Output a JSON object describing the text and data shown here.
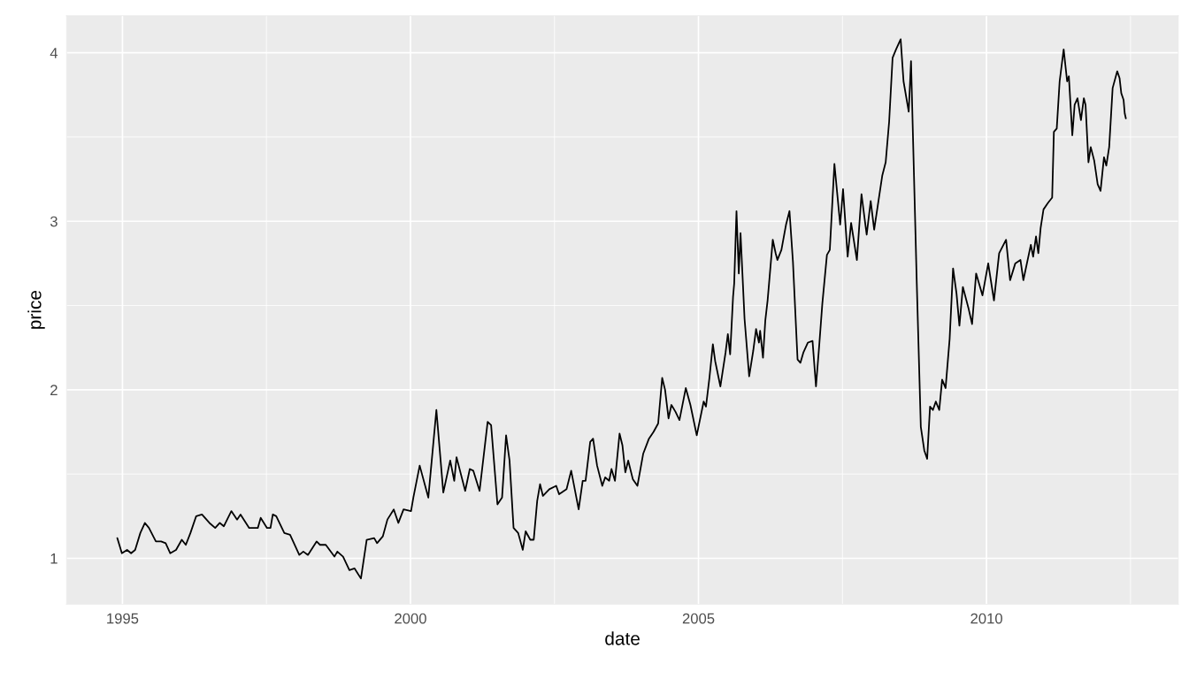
{
  "chart_data": {
    "type": "line",
    "xlabel": "date",
    "ylabel": "price",
    "xlim": [
      1994.03,
      2013.33
    ],
    "xticks": [
      1995,
      2000,
      2005,
      2010
    ],
    "ylim": [
      0.727,
      4.22
    ],
    "yticks": [
      1,
      2,
      3,
      4
    ],
    "grid": true,
    "line_style": "solid",
    "series": [
      {
        "color": "#000000",
        "x": [
          1994.91,
          1994.99,
          1995.08,
          1995.15,
          1995.22,
          1995.31,
          1995.39,
          1995.46,
          1995.58,
          1995.67,
          1995.75,
          1995.83,
          1995.93,
          1996.03,
          1996.1,
          1996.18,
          1996.28,
          1996.38,
          1996.51,
          1996.61,
          1996.69,
          1996.76,
          1996.89,
          1996.99,
          1997.05,
          1997.2,
          1997.35,
          1997.4,
          1997.51,
          1997.57,
          1997.61,
          1997.67,
          1997.81,
          1997.91,
          1998.07,
          1998.14,
          1998.22,
          1998.37,
          1998.43,
          1998.53,
          1998.68,
          1998.73,
          1998.83,
          1998.94,
          1999.03,
          1999.14,
          1999.24,
          1999.37,
          1999.42,
          1999.52,
          1999.6,
          1999.71,
          1999.79,
          1999.88,
          2000.01,
          2000.05,
          2000.16,
          2000.31,
          2000.45,
          2000.57,
          2000.69,
          2000.76,
          2000.8,
          2000.95,
          2001.03,
          2001.09,
          2001.2,
          2001.34,
          2001.4,
          2001.51,
          2001.59,
          2001.66,
          2001.72,
          2001.79,
          2001.87,
          2001.95,
          2002.0,
          2002.08,
          2002.14,
          2002.2,
          2002.25,
          2002.3,
          2002.41,
          2002.53,
          2002.58,
          2002.71,
          2002.79,
          2002.92,
          2002.99,
          2003.04,
          2003.12,
          2003.17,
          2003.24,
          2003.33,
          2003.38,
          2003.45,
          2003.49,
          2003.55,
          2003.63,
          2003.68,
          2003.73,
          2003.78,
          2003.86,
          2003.94,
          2004.04,
          2004.14,
          2004.22,
          2004.3,
          2004.37,
          2004.42,
          2004.48,
          2004.53,
          2004.6,
          2004.67,
          2004.78,
          2004.86,
          2004.97,
          2005.09,
          2005.13,
          2005.19,
          2005.25,
          2005.29,
          2005.38,
          2005.47,
          2005.51,
          2005.55,
          2005.6,
          2005.62,
          2005.66,
          2005.7,
          2005.73,
          2005.8,
          2005.88,
          2005.95,
          2006.0,
          2006.05,
          2006.07,
          2006.12,
          2006.16,
          2006.2,
          2006.29,
          2006.34,
          2006.37,
          2006.44,
          2006.52,
          2006.58,
          2006.64,
          2006.72,
          2006.77,
          2006.82,
          2006.9,
          2006.98,
          2007.04,
          2007.1,
          2007.15,
          2007.23,
          2007.28,
          2007.36,
          2007.46,
          2007.51,
          2007.59,
          2007.65,
          2007.75,
          2007.83,
          2007.92,
          2007.99,
          2008.05,
          2008.12,
          2008.19,
          2008.25,
          2008.31,
          2008.37,
          2008.43,
          2008.51,
          2008.56,
          2008.65,
          2008.69,
          2008.79,
          2008.86,
          2008.92,
          2008.97,
          2009.02,
          2009.07,
          2009.12,
          2009.18,
          2009.23,
          2009.29,
          2009.36,
          2009.42,
          2009.48,
          2009.53,
          2009.59,
          2009.69,
          2009.75,
          2009.82,
          2009.93,
          2010.03,
          2010.13,
          2010.22,
          2010.34,
          2010.41,
          2010.5,
          2010.59,
          2010.64,
          2010.77,
          2010.81,
          2010.86,
          2010.9,
          2010.94,
          2010.99,
          2011.07,
          2011.14,
          2011.17,
          2011.22,
          2011.27,
          2011.34,
          2011.4,
          2011.43,
          2011.49,
          2011.53,
          2011.58,
          2011.64,
          2011.69,
          2011.72,
          2011.77,
          2011.81,
          2011.87,
          2011.93,
          2011.98,
          2012.04,
          2012.08,
          2012.13,
          2012.19,
          2012.27,
          2012.31,
          2012.34,
          2012.38,
          2012.4,
          2012.42
        ],
        "values": [
          1.12,
          1.03,
          1.05,
          1.03,
          1.05,
          1.15,
          1.21,
          1.18,
          1.1,
          1.1,
          1.09,
          1.03,
          1.05,
          1.11,
          1.08,
          1.15,
          1.25,
          1.26,
          1.21,
          1.18,
          1.21,
          1.19,
          1.28,
          1.23,
          1.26,
          1.18,
          1.18,
          1.24,
          1.18,
          1.18,
          1.26,
          1.25,
          1.15,
          1.14,
          1.02,
          1.04,
          1.02,
          1.1,
          1.08,
          1.08,
          1.01,
          1.04,
          1.01,
          0.93,
          0.94,
          0.88,
          1.11,
          1.12,
          1.09,
          1.13,
          1.23,
          1.29,
          1.21,
          1.29,
          1.28,
          1.36,
          1.55,
          1.36,
          1.88,
          1.39,
          1.58,
          1.46,
          1.6,
          1.4,
          1.53,
          1.52,
          1.4,
          1.81,
          1.79,
          1.32,
          1.36,
          1.73,
          1.58,
          1.18,
          1.15,
          1.05,
          1.16,
          1.11,
          1.11,
          1.34,
          1.44,
          1.37,
          1.41,
          1.43,
          1.38,
          1.41,
          1.52,
          1.29,
          1.46,
          1.46,
          1.69,
          1.71,
          1.55,
          1.43,
          1.48,
          1.46,
          1.53,
          1.46,
          1.74,
          1.67,
          1.51,
          1.58,
          1.47,
          1.43,
          1.62,
          1.71,
          1.75,
          1.8,
          2.07,
          2.0,
          1.83,
          1.91,
          1.87,
          1.82,
          2.01,
          1.91,
          1.73,
          1.93,
          1.9,
          2.07,
          2.27,
          2.17,
          2.02,
          2.22,
          2.33,
          2.21,
          2.55,
          2.63,
          3.06,
          2.69,
          2.93,
          2.42,
          2.08,
          2.23,
          2.36,
          2.28,
          2.35,
          2.19,
          2.41,
          2.53,
          2.89,
          2.81,
          2.77,
          2.83,
          2.98,
          3.06,
          2.76,
          2.18,
          2.16,
          2.22,
          2.28,
          2.29,
          2.02,
          2.28,
          2.51,
          2.8,
          2.83,
          3.34,
          2.98,
          3.19,
          2.79,
          2.99,
          2.77,
          3.16,
          2.92,
          3.12,
          2.95,
          3.11,
          3.27,
          3.35,
          3.59,
          3.97,
          4.02,
          4.08,
          3.83,
          3.65,
          3.95,
          2.63,
          1.78,
          1.64,
          1.59,
          1.9,
          1.88,
          1.93,
          1.88,
          2.06,
          2.01,
          2.3,
          2.72,
          2.57,
          2.38,
          2.61,
          2.48,
          2.39,
          2.69,
          2.56,
          2.75,
          2.53,
          2.81,
          2.89,
          2.65,
          2.75,
          2.77,
          2.65,
          2.86,
          2.79,
          2.91,
          2.81,
          2.96,
          3.07,
          3.11,
          3.14,
          3.53,
          3.55,
          3.83,
          4.02,
          3.83,
          3.86,
          3.51,
          3.69,
          3.73,
          3.6,
          3.73,
          3.69,
          3.35,
          3.44,
          3.36,
          3.22,
          3.18,
          3.38,
          3.33,
          3.44,
          3.79,
          3.89,
          3.85,
          3.76,
          3.72,
          3.64,
          3.61
        ]
      }
    ]
  }
}
